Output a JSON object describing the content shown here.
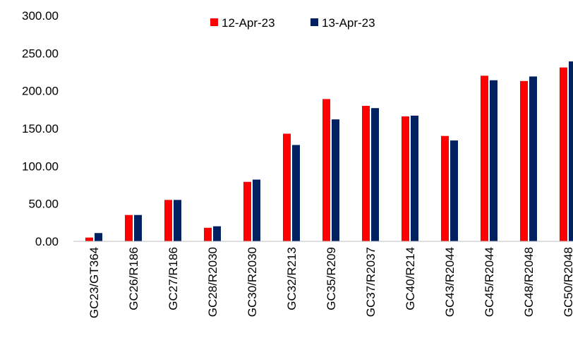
{
  "chart_data": {
    "type": "bar",
    "title": "",
    "xlabel": "",
    "ylabel": "",
    "ylim": [
      0,
      300
    ],
    "y_ticks": [
      "0.00",
      "50.00",
      "100.00",
      "150.00",
      "200.00",
      "250.00",
      "300.00"
    ],
    "grid": false,
    "legend_position": "top-center",
    "categories": [
      "GC23/GT364",
      "GC26/R186",
      "GC27/R186",
      "GC28/R2030",
      "GC30/R2030",
      "GC32/R213",
      "GC35/R209",
      "GC37/R2037",
      "GC40/R214",
      "GC43/R2044",
      "GC45/R2044",
      "GC48/R2048",
      "GC50/R2048"
    ],
    "series": [
      {
        "name": "12-Apr-23",
        "color": "#ff0000",
        "values": [
          5,
          35,
          55,
          18,
          79,
          143,
          189,
          180,
          166,
          140,
          220,
          213,
          231
        ]
      },
      {
        "name": "13-Apr-23",
        "color": "#002060",
        "values": [
          11,
          35,
          55,
          20,
          82,
          128,
          162,
          177,
          167,
          134,
          214,
          219,
          239
        ]
      }
    ]
  }
}
